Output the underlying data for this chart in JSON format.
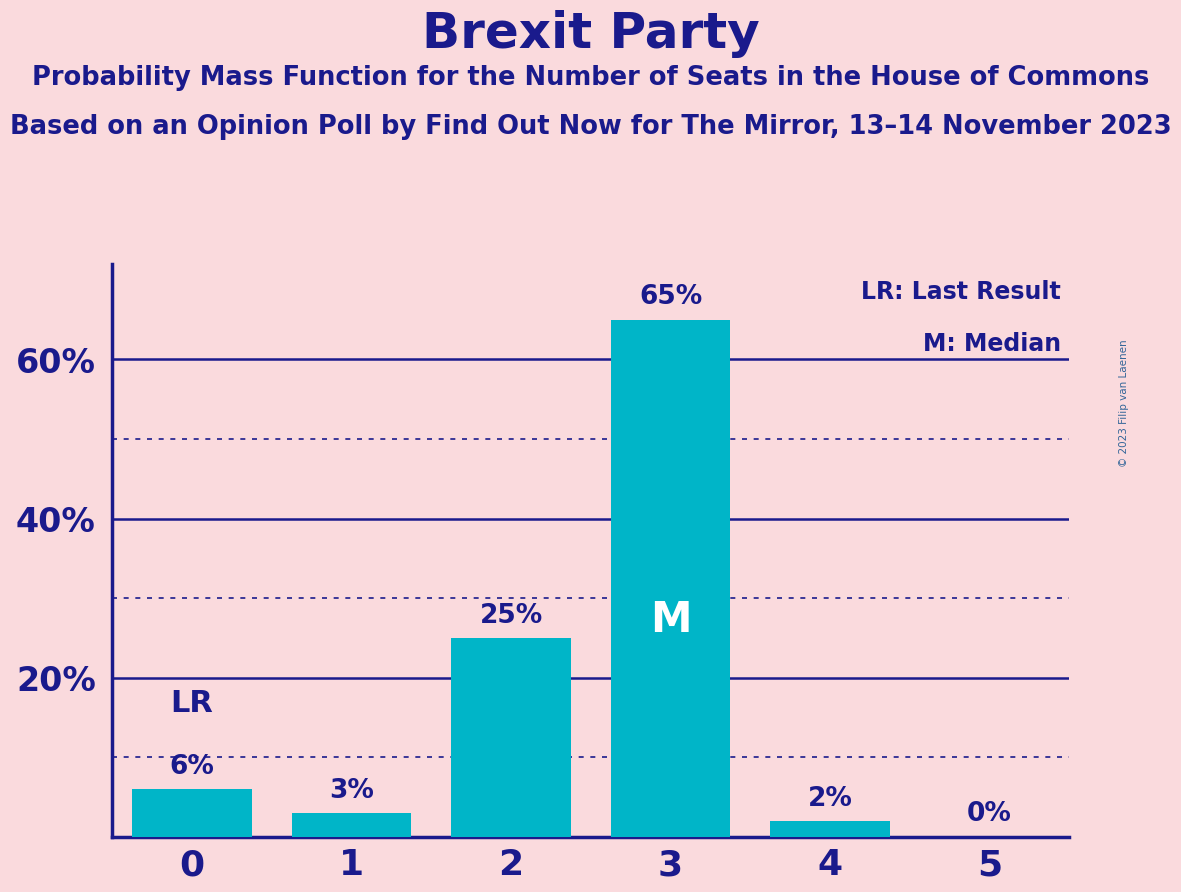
{
  "title": "Brexit Party",
  "subtitle1": "Probability Mass Function for the Number of Seats in the House of Commons",
  "subtitle2": "Based on an Opinion Poll by Find Out Now for The Mirror, 13–14 November 2023",
  "copyright": "© 2023 Filip van Laenen",
  "categories": [
    0,
    1,
    2,
    3,
    4,
    5
  ],
  "values": [
    6,
    3,
    25,
    65,
    2,
    0
  ],
  "bar_color": "#00B5C8",
  "background_color": "#FADADD",
  "text_color": "#1a1a8c",
  "median_bar": 3,
  "lr_bar": 0,
  "legend_lr": "LR: Last Result",
  "legend_m": "M: Median",
  "solid_gridlines": [
    20,
    40,
    60
  ],
  "dotted_gridlines": [
    10,
    30,
    50
  ],
  "ylim": [
    0,
    72
  ],
  "copyright_color": "#336699"
}
